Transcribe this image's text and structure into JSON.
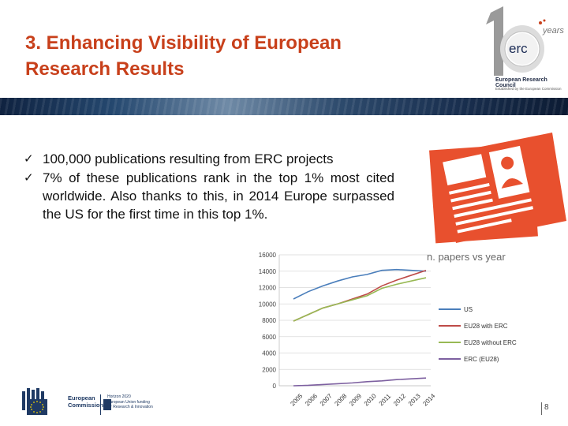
{
  "slide": {
    "title_line1": "3. Enhancing Visibility of European",
    "title_line2": "Research Results",
    "bullets": [
      "100,000 publications resulting from ERC projects",
      "7% of these publications rank in the top 1% most cited worldwide. Also thanks to this, in 2014 Europe surpassed the US for the first time in this top 1%."
    ],
    "check_glyph": "✓",
    "page_number": "8"
  },
  "logo": {
    "mark": "erc",
    "years_text": "years",
    "org_name": "European Research Council",
    "org_sub": "Established by the European Commission"
  },
  "footer": {
    "ec_line1": "European",
    "ec_line2": "Commission",
    "h2020_line1": "Horizon 2020",
    "h2020_line2": "European Union funding",
    "h2020_line3": "for Research & Innovation"
  },
  "colors": {
    "title": "#c8401b",
    "icon_red": "#e8502e",
    "us": "#4a7ebb",
    "eu28_with_erc": "#be4b48",
    "eu28_without_erc": "#98b954",
    "erc": "#7d60a0"
  },
  "chart_data": {
    "type": "line",
    "title": "n. papers vs year",
    "x": [
      "2005",
      "2006",
      "2007",
      "2008",
      "2009",
      "2010",
      "2011",
      "2012",
      "2013",
      "2014"
    ],
    "ylim": [
      0,
      16000
    ],
    "yticks": [
      "0",
      "2000",
      "4000",
      "6000",
      "8000",
      "10000",
      "12000",
      "14000",
      "16000"
    ],
    "grid": true,
    "legend_position": "right",
    "series": [
      {
        "name": "US",
        "color": "#4a7ebb",
        "values": [
          10600,
          11500,
          12200,
          12800,
          13300,
          13600,
          14100,
          14200,
          14100,
          14000
        ]
      },
      {
        "name": "EU28 with ERC",
        "color": "#be4b48",
        "values": [
          7900,
          8700,
          9500,
          10000,
          10600,
          11200,
          12200,
          12900,
          13500,
          14100
        ]
      },
      {
        "name": "EU28 without ERC",
        "color": "#98b954",
        "values": [
          7900,
          8700,
          9500,
          10000,
          10500,
          11000,
          11900,
          12400,
          12800,
          13200
        ]
      },
      {
        "name": "ERC (EU28)",
        "color": "#7d60a0",
        "values": [
          0,
          50,
          150,
          250,
          350,
          500,
          600,
          750,
          850,
          950
        ]
      }
    ]
  }
}
